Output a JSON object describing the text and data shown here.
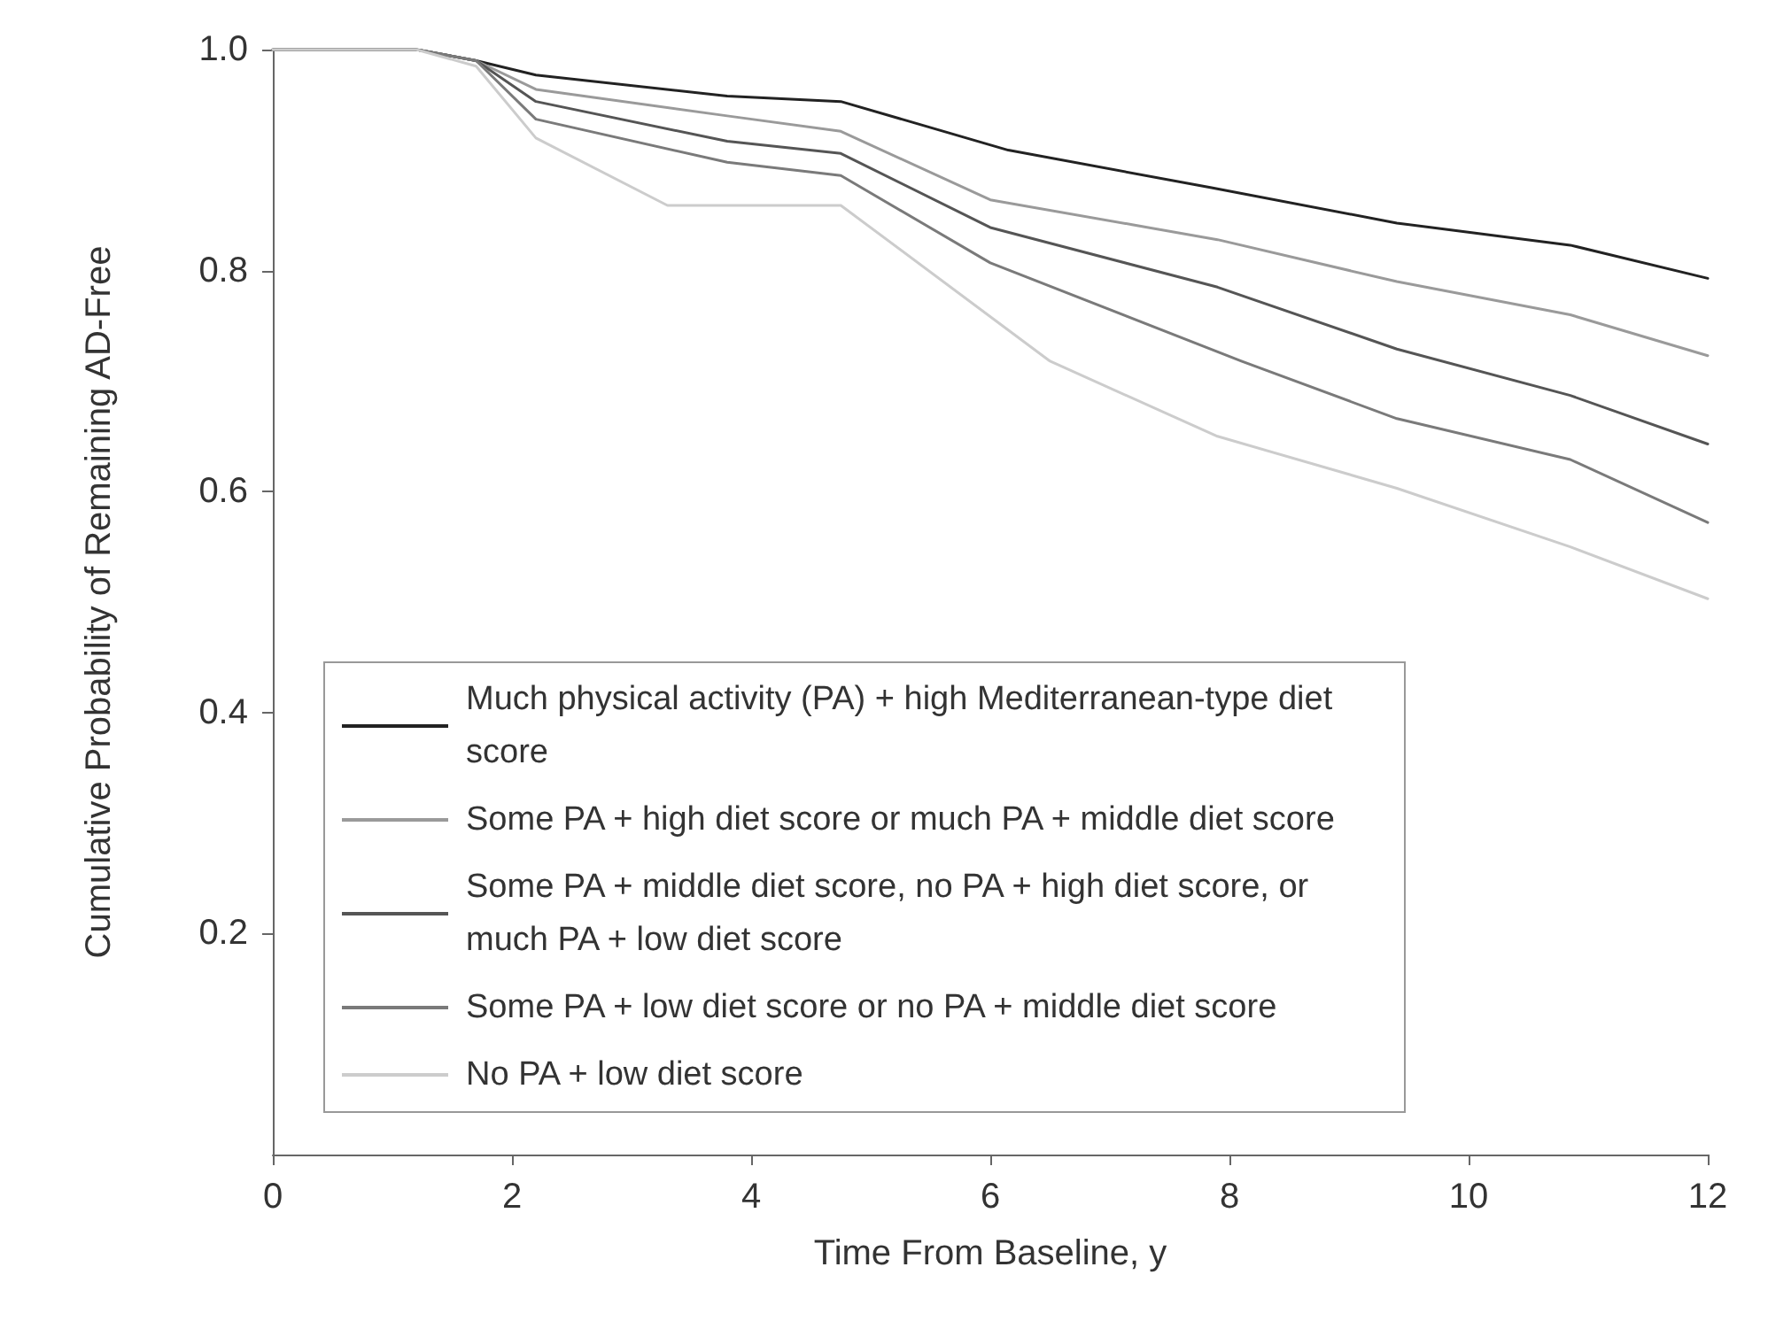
{
  "chart_data": {
    "type": "line",
    "xlabel": "Time From Baseline, y",
    "ylabel": "Cumulative Probability of Remaining AD-Free",
    "xlim": [
      0,
      12
    ],
    "xticks": [
      0,
      2,
      4,
      6,
      8,
      10,
      12
    ],
    "ylim": [
      0,
      1
    ],
    "yticks": [
      0.2,
      0.4,
      0.6,
      0.8,
      {
        "value": 1,
        "label": "1.0"
      }
    ],
    "grid": false,
    "legend": "bottom left",
    "marker": "none",
    "line_style": "solid",
    "series": [
      {
        "name": "Much physical activity (PA) + high Mediterranean-type diet score",
        "color": "#222222",
        "x": [
          0,
          1.2,
          1.7,
          2.2,
          3.8,
          4.75,
          6.15,
          7.85,
          9.4,
          10.85,
          12
        ],
        "values": [
          1.0,
          1.0,
          0.99,
          0.977,
          0.958,
          0.953,
          0.909,
          0.875,
          0.843,
          0.823,
          0.793
        ]
      },
      {
        "name": "Some PA + high diet score or much PA + middle diet score",
        "color": "#9a9a9a",
        "x": [
          0,
          1.2,
          1.7,
          2.2,
          3.8,
          4.75,
          6.0,
          7.9,
          9.4,
          10.85,
          12
        ],
        "values": [
          1.0,
          1.0,
          0.99,
          0.964,
          0.94,
          0.926,
          0.864,
          0.828,
          0.79,
          0.76,
          0.723
        ]
      },
      {
        "name": "Some PA + middle diet score, no PA + high diet score, or much PA + low diet score",
        "color": "#555555",
        "x": [
          0,
          1.2,
          1.7,
          2.2,
          3.8,
          4.75,
          6.0,
          7.9,
          9.4,
          10.85,
          12
        ],
        "values": [
          1.0,
          1.0,
          0.99,
          0.953,
          0.917,
          0.906,
          0.839,
          0.785,
          0.729,
          0.687,
          0.643
        ]
      },
      {
        "name": "Some PA + low diet score or no PA + middle diet score",
        "color": "#7a7a7a",
        "x": [
          0,
          1.2,
          1.7,
          2.2,
          3.8,
          4.75,
          6.0,
          8.1,
          9.4,
          10.85,
          12
        ],
        "values": [
          1.0,
          1.0,
          0.99,
          0.937,
          0.898,
          0.886,
          0.807,
          0.718,
          0.666,
          0.629,
          0.572
        ]
      },
      {
        "name": "No PA + low diet score",
        "color": "#cccccc",
        "x": [
          0,
          1.2,
          1.7,
          2.2,
          3.3,
          4.75,
          6.5,
          7.9,
          9.4,
          10.85,
          12
        ],
        "values": [
          1.0,
          1.0,
          0.985,
          0.92,
          0.859,
          0.859,
          0.718,
          0.65,
          0.603,
          0.55,
          0.503
        ]
      }
    ]
  }
}
